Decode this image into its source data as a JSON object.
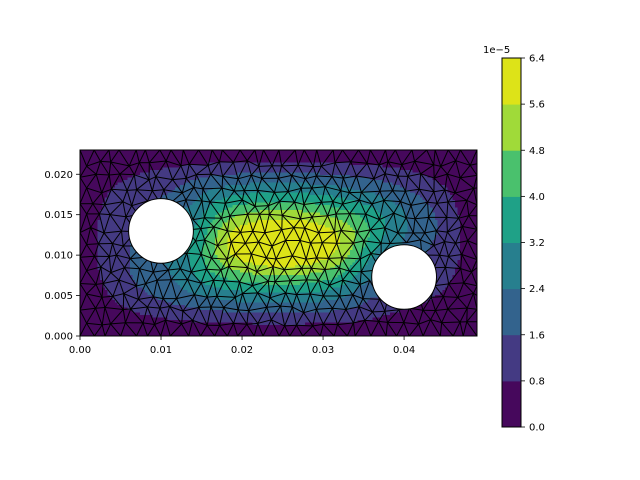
{
  "chart_data": {
    "type": "heatmap",
    "subtype": "tricontourf with triangular mesh overlay",
    "title": "",
    "xlabel": "",
    "ylabel": "",
    "xlim": [
      0.0,
      0.049
    ],
    "ylim": [
      0.0,
      0.023
    ],
    "x_ticks": [
      "0.00",
      "0.01",
      "0.02",
      "0.03",
      "0.04"
    ],
    "y_ticks": [
      "0.000",
      "0.005",
      "0.010",
      "0.015",
      "0.020"
    ],
    "holes": [
      {
        "cx": 0.01,
        "cy": 0.013,
        "r": 0.004
      },
      {
        "cx": 0.04,
        "cy": 0.0073,
        "r": 0.004
      }
    ],
    "peak_region": {
      "x": [
        0.015,
        0.036
      ],
      "y": [
        0.0075,
        0.0155
      ],
      "peak_value": 6.4e-05
    },
    "colorbar": {
      "offset_text": "1e−5",
      "ticks": [
        "0.0",
        "0.8",
        "1.6",
        "2.4",
        "3.2",
        "4.0",
        "4.8",
        "5.6",
        "6.4"
      ],
      "levels": [
        0.0,
        0.8,
        1.6,
        2.4,
        3.2,
        4.0,
        4.8,
        5.6,
        6.4
      ],
      "scale": 1e-05,
      "colors": [
        "#46085c",
        "#443a83",
        "#33638d",
        "#277f8e",
        "#1fa187",
        "#4ac16d",
        "#a0da39",
        "#dde318"
      ],
      "cmap": "viridis"
    },
    "grid": false,
    "legend": "none"
  }
}
